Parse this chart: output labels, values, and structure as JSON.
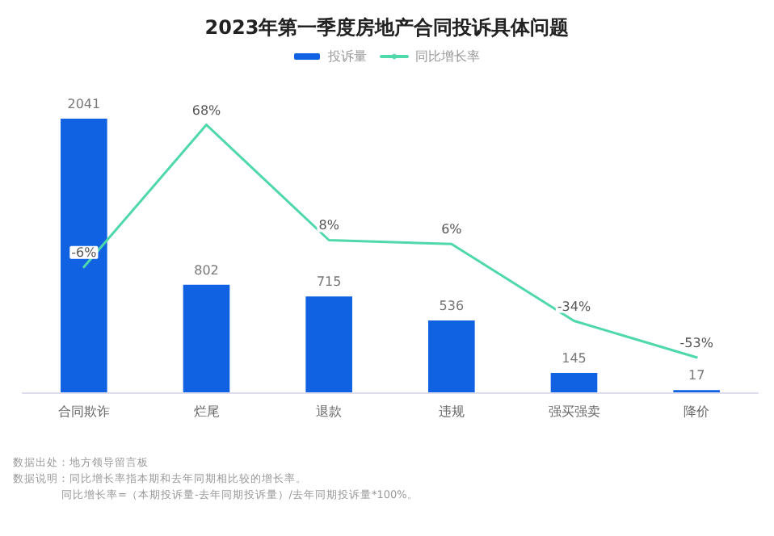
{
  "chart_data": {
    "type": "bar",
    "title": "2023年第一季度房地产合同投诉具体问题",
    "categories": [
      "合同欺诈",
      "烂尾",
      "退款",
      "违规",
      "强买强卖",
      "降价"
    ],
    "series": [
      {
        "name": "投诉量",
        "color": "#1062e2",
        "values": [
          2041,
          802,
          715,
          536,
          145,
          17
        ]
      },
      {
        "name": "同比增长率",
        "type": "line",
        "axis": "y2",
        "color": "#4fd8aa",
        "values": [
          -6,
          68,
          8,
          6,
          -34,
          -53
        ],
        "value_labels": [
          "-6%",
          "68%",
          "8%",
          "6%",
          "-34%",
          "-53%"
        ]
      }
    ],
    "data_labels": true,
    "legend": "top",
    "marker": "none",
    "line_style": "solid",
    "annotations": [
      "数据出处：地方领导留言板",
      "数据说明：同比增长率指本期和去年同期相比较的增长率。",
      "同比增长率=（本期投诉量-去年同期投诉量）/去年同期投诉量*100%。"
    ]
  }
}
